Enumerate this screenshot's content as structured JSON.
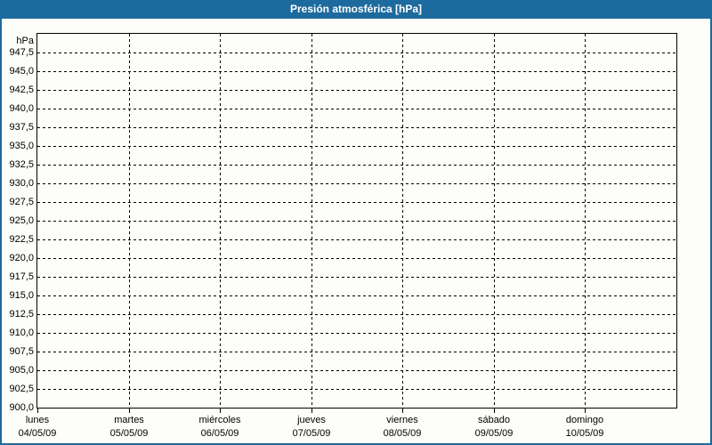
{
  "window": {
    "title": "Presión atmosférica [hPa]"
  },
  "colors": {
    "titlebar_bg": "#1d6b9e",
    "frame_border": "#1d6b9e",
    "title_text": "#ffffff",
    "content_bg": "#fdfef9",
    "plot_border": "#000000",
    "grid_color": "#000000",
    "label_color": "#000000"
  },
  "chart_data": {
    "type": "line",
    "title": "Presión atmosférica [hPa]",
    "ylabel_unit": "hPa",
    "ylim": [
      900,
      950
    ],
    "ytick_step": 2.5,
    "decimal_separator": ",",
    "ytick_values": [
      947.5,
      945.0,
      942.5,
      940.0,
      937.5,
      935.0,
      932.5,
      930.0,
      927.5,
      925.0,
      922.5,
      920.0,
      917.5,
      915.0,
      912.5,
      910.0,
      907.5,
      905.0,
      902.5,
      900.0
    ],
    "ytick_labels": [
      "947,5",
      "945,0",
      "942,5",
      "940,0",
      "937,5",
      "935,0",
      "932,5",
      "930,0",
      "927,5",
      "925,0",
      "922,5",
      "920,0",
      "917,5",
      "915,0",
      "912,5",
      "910,0",
      "907,5",
      "905,0",
      "902,5",
      "900,0"
    ],
    "x_categories": [
      {
        "day": "lunes",
        "date": "04/05/09"
      },
      {
        "day": "martes",
        "date": "05/05/09"
      },
      {
        "day": "miércoles",
        "date": "06/05/09"
      },
      {
        "day": "jueves",
        "date": "07/05/09"
      },
      {
        "day": "viernes",
        "date": "08/05/09"
      },
      {
        "day": "sábado",
        "date": "09/05/09"
      },
      {
        "day": "domingo",
        "date": "10/05/09"
      }
    ],
    "series": [],
    "grid": "dashed horizontal and vertical",
    "legend": "none"
  }
}
